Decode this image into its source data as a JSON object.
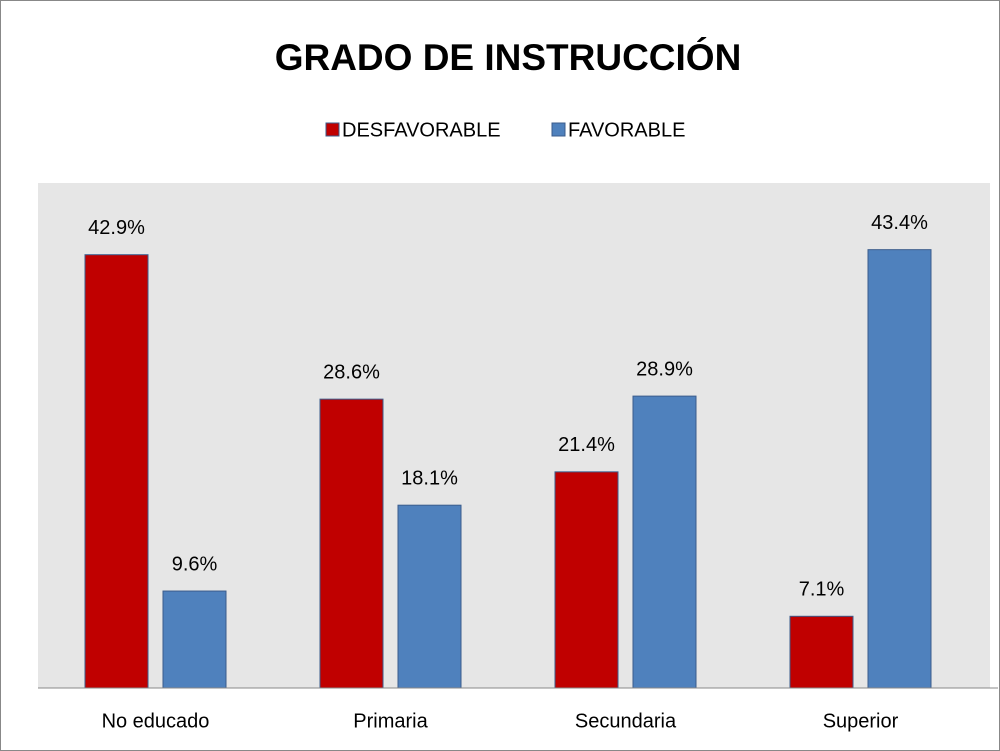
{
  "chart_data": {
    "type": "bar",
    "title": "GRADO DE INSTRUCCIÓN",
    "categories": [
      "No educado",
      "Primaria",
      "Secundaria",
      "Superior"
    ],
    "series": [
      {
        "name": "DESFAVORABLE",
        "color": "#c00000",
        "values": [
          42.9,
          28.6,
          21.4,
          7.1
        ],
        "value_labels": [
          "42.9%",
          "28.6%",
          "21.4%",
          "7.1%"
        ]
      },
      {
        "name": "FAVORABLE",
        "color": "#4f81bd",
        "values": [
          9.6,
          18.1,
          28.9,
          43.4
        ],
        "value_labels": [
          "9.6%",
          "18.1%",
          "28.9%",
          "43.4%"
        ]
      }
    ],
    "ylim": [
      0,
      50
    ],
    "legend": "top"
  }
}
